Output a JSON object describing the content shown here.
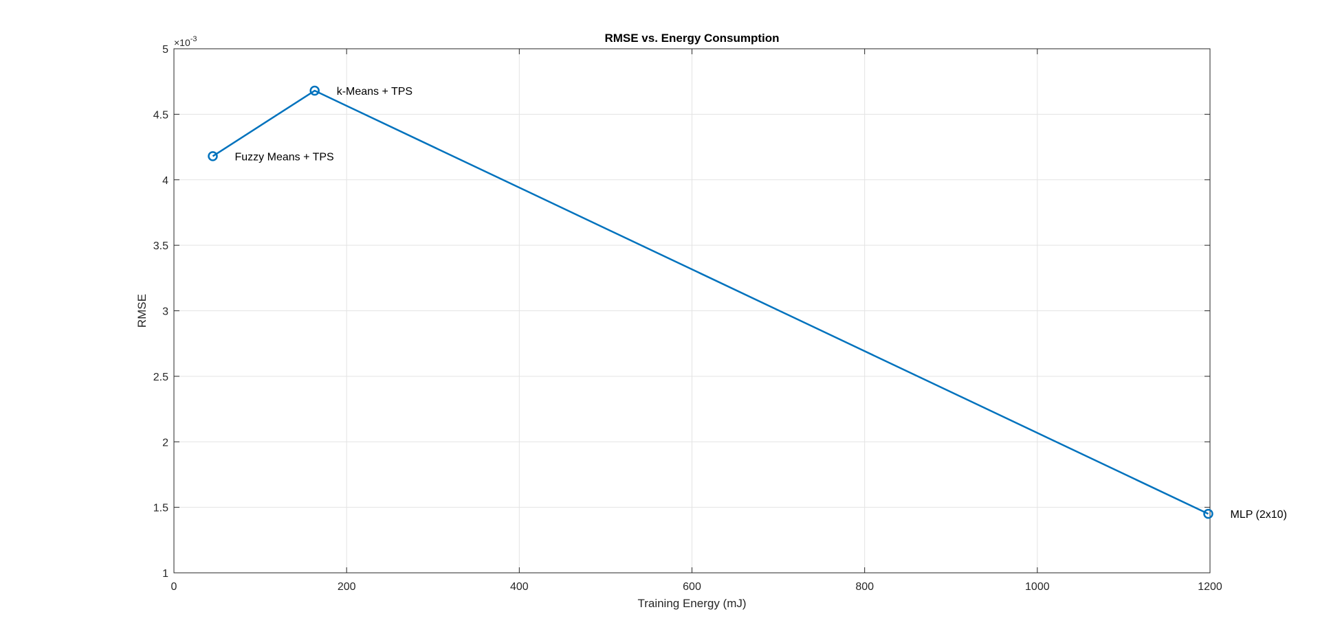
{
  "chart_data": {
    "type": "line",
    "title": "RMSE vs. Energy Consumption",
    "xlabel": "Training Energy (mJ)",
    "ylabel": "RMSE",
    "y_exponent_base": "×10",
    "y_exponent_power": "-3",
    "xlim": [
      0,
      1200
    ],
    "ylim": [
      1,
      5
    ],
    "xticks": [
      0,
      200,
      400,
      600,
      800,
      1000,
      1200
    ],
    "yticks": [
      1,
      1.5,
      2,
      2.5,
      3,
      3.5,
      4,
      4.5,
      5
    ],
    "xtick_labels": [
      "0",
      "200",
      "400",
      "600",
      "800",
      "1000",
      "1200"
    ],
    "ytick_labels": [
      "1",
      "1.5",
      "2",
      "2.5",
      "3",
      "3.5",
      "4",
      "4.5",
      "5"
    ],
    "grid": true,
    "series": [
      {
        "color": "#0072BD",
        "marker": "circle",
        "x": [
          45,
          163,
          1198
        ],
        "y": [
          4.18,
          4.68,
          1.45
        ],
        "point_labels": [
          "Fuzzy Means + TPS",
          "k-Means + TPS",
          "MLP (2x10)"
        ]
      }
    ]
  }
}
